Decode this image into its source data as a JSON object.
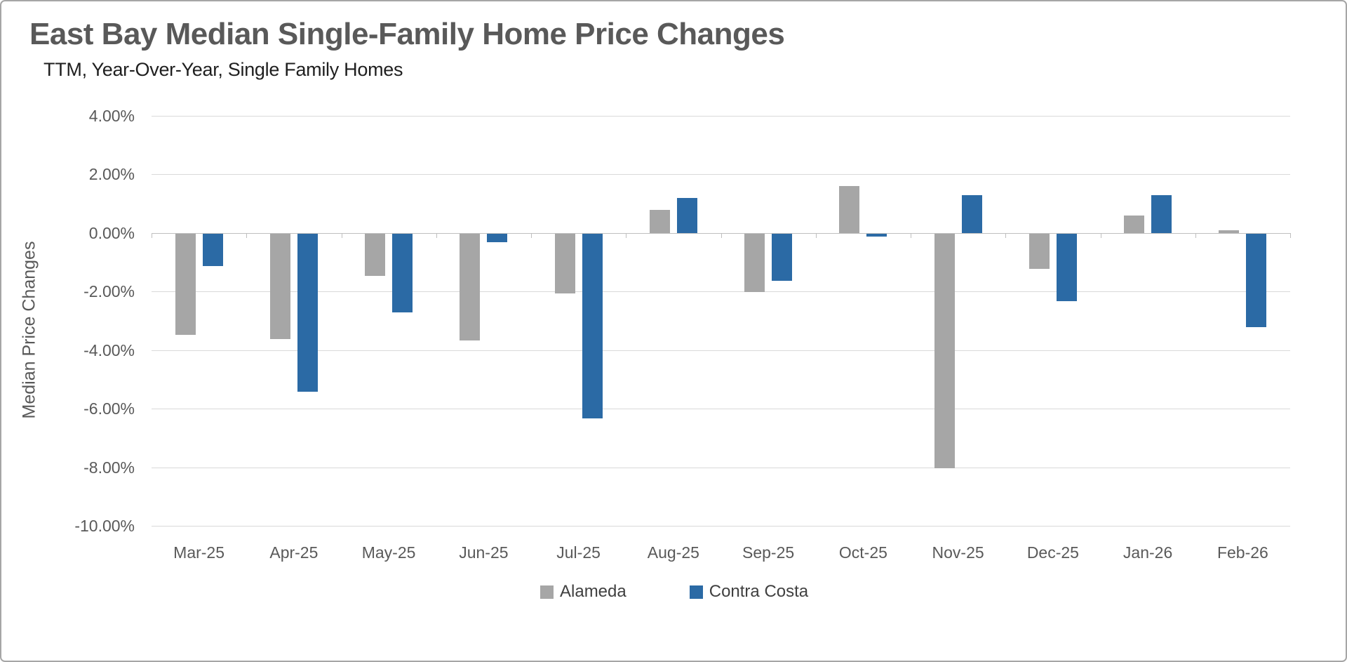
{
  "title": "East Bay Median Single-Family Home Price Changes",
  "subtitle": "TTM, Year-Over-Year, Single Family Homes",
  "chart_data": {
    "type": "bar",
    "title": "East Bay Median Single-Family Home Price Changes",
    "subtitle": "TTM, Year-Over-Year, Single Family Homes",
    "xlabel": "",
    "ylabel": "Median Price Changes",
    "categories": [
      "Mar-25",
      "Apr-25",
      "May-25",
      "Jun-25",
      "Jul-25",
      "Aug-25",
      "Sep-25",
      "Oct-25",
      "Nov-25",
      "Dec-25",
      "Jan-26",
      "Feb-26"
    ],
    "series": [
      {
        "name": "Alameda",
        "color": "#a6a6a6",
        "values": [
          -3.45,
          -3.6,
          -1.45,
          -3.65,
          -2.05,
          0.8,
          -2.0,
          1.6,
          -8.0,
          -1.2,
          0.6,
          0.1
        ]
      },
      {
        "name": "Contra Costa",
        "color": "#2b6aa5",
        "values": [
          -1.1,
          -5.4,
          -2.7,
          -0.3,
          -6.3,
          1.2,
          -1.6,
          -0.1,
          1.3,
          -2.3,
          1.3,
          -3.2
        ]
      }
    ],
    "value_unit": "percent",
    "ylim": [
      -10,
      4
    ],
    "y_ticks": [
      {
        "value": 4,
        "label": "4.00%"
      },
      {
        "value": 2,
        "label": "2.00%"
      },
      {
        "value": 0,
        "label": "0.00%"
      },
      {
        "value": -2,
        "label": "-2.00%"
      },
      {
        "value": -4,
        "label": "-4.00%"
      },
      {
        "value": -6,
        "label": "-6.00%"
      },
      {
        "value": -8,
        "label": "-8.00%"
      },
      {
        "value": -10,
        "label": "-10.00%"
      }
    ],
    "grid": true,
    "legend_position": "bottom"
  },
  "colors": {
    "title_text": "#595959",
    "subtitle_text": "#1f1f1f",
    "axis_text": "#595959",
    "legend_text": "#404040",
    "gridline": "#d9d9d9",
    "axis_line": "#bfbfbf",
    "background": "#ffffff",
    "frame_border": "#a6a6a6"
  }
}
